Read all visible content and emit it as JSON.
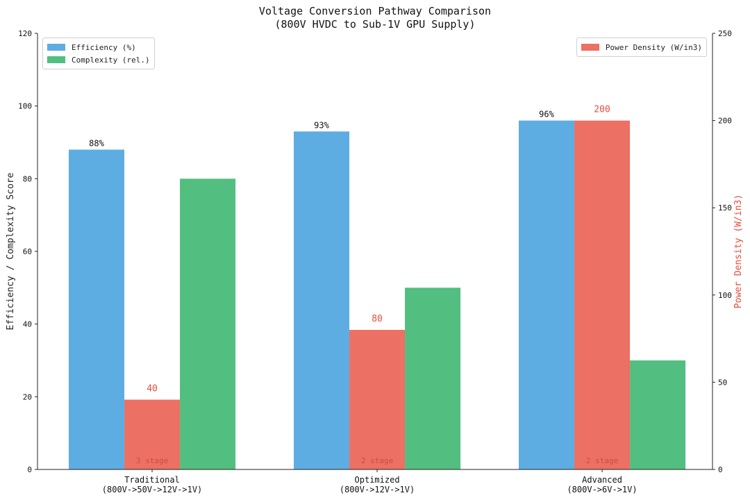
{
  "chart_data": {
    "type": "bar",
    "title_lines": [
      "Voltage Conversion Pathway Comparison",
      "(800V HVDC to Sub-1V GPU Supply)"
    ],
    "categories": [
      {
        "name": "Traditional",
        "path": "(800V->50V->12V->1V)",
        "stage_label": "3 stage"
      },
      {
        "name": "Optimized",
        "path": "(800V->12V->1V)",
        "stage_label": "2 stage"
      },
      {
        "name": "Advanced",
        "path": "(800V->6V->1V)",
        "stage_label": "2 stage"
      }
    ],
    "series": [
      {
        "name": "Efficiency (%)",
        "axis": "left",
        "color": "#5dade2",
        "values": [
          88,
          93,
          96
        ],
        "labels": [
          "88%",
          "93%",
          "96%"
        ]
      },
      {
        "name": "Power Density (W/in3)",
        "axis": "right",
        "color": "#ec7063",
        "values": [
          40,
          80,
          200
        ],
        "labels": [
          "40",
          "80",
          "200"
        ]
      },
      {
        "name": "Complexity (rel.)",
        "axis": "left",
        "color": "#52be80",
        "values": [
          80,
          50,
          30
        ]
      }
    ],
    "ylabel_left": "Efficiency / Complexity Score",
    "ylabel_right": "Power Density (W/in3)",
    "ylim_left": [
      0,
      120
    ],
    "ylim_right": [
      0,
      250
    ],
    "yticks_left": [
      "0",
      "20",
      "40",
      "60",
      "80",
      "100",
      "120"
    ],
    "yticks_right": [
      "0",
      "50",
      "100",
      "150",
      "200",
      "250"
    ],
    "legend_left": [
      "Efficiency (%)",
      "Complexity (rel.)"
    ],
    "legend_right": [
      "Power Density (W/in3)"
    ],
    "grid": false
  }
}
